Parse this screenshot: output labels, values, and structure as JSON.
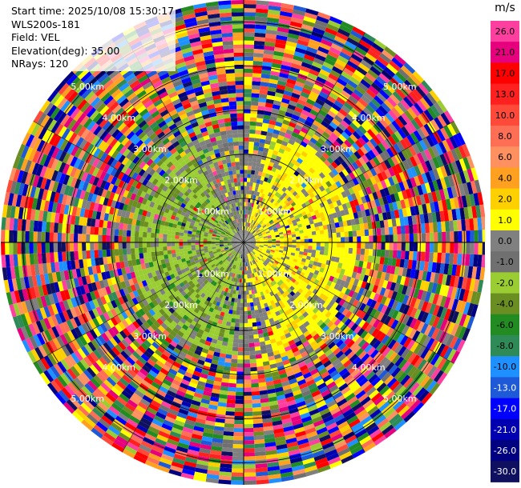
{
  "header": {
    "start_time": "Start time: 2025/10/08 15:30:17",
    "instrument": "WLS200s-181",
    "field": "Field: VEL",
    "elevation": "Elevation(deg): 35.00",
    "nrays": "NRays: 120"
  },
  "colorbar": {
    "unit": "m/s",
    "ticks": [
      "26.0",
      "21.0",
      "17.0",
      "13.0",
      "10.0",
      "8.0",
      "6.0",
      "4.0",
      "2.0",
      "1.0",
      "0.0",
      "-1.0",
      "-2.0",
      "-4.0",
      "-6.0",
      "-8.0",
      "-10.0",
      "-13.0",
      "-17.0",
      "-21.0",
      "-26.0",
      "-30.0"
    ],
    "colors": [
      "#ff3fa0",
      "#e6007e",
      "#ff0000",
      "#ff2020",
      "#ff4a3a",
      "#ff6f55",
      "#ff9060",
      "#ffa020",
      "#ffd000",
      "#ffff00",
      "#808080",
      "#707070",
      "#9acd32",
      "#6b8e23",
      "#228b22",
      "#2e8b57",
      "#1e90ff",
      "#1e5ad8",
      "#0000ff",
      "#0000b0",
      "#000080",
      "#101060"
    ]
  },
  "range_rings": [
    "1.00km",
    "2.00km",
    "3.00km",
    "4.00km",
    "5.00km"
  ],
  "chart_data": {
    "type": "heatmap",
    "title": "",
    "field": "VEL",
    "unit": "m/s",
    "elevation_deg": 35.0,
    "n_rays": 120,
    "max_range_km": 5.5,
    "range_rings_km": [
      1,
      2,
      3,
      4,
      5
    ],
    "color_scale": [
      -30,
      -26,
      -21,
      -17,
      -13,
      -10,
      -8,
      -6,
      -4,
      -2,
      -1,
      0,
      1,
      2,
      4,
      6,
      8,
      10,
      13,
      17,
      21,
      26
    ],
    "pattern": {
      "positive_sector": "north-east to south-east, 0.3–3 km, yellow (+2 to +4 m/s)",
      "negative_sector": "west to south-west, 0.3–3 km, green (-1 to -4 m/s)",
      "near_zero": "grey (0 m/s) around center",
      "noise": "random values beyond ~3 km"
    }
  }
}
